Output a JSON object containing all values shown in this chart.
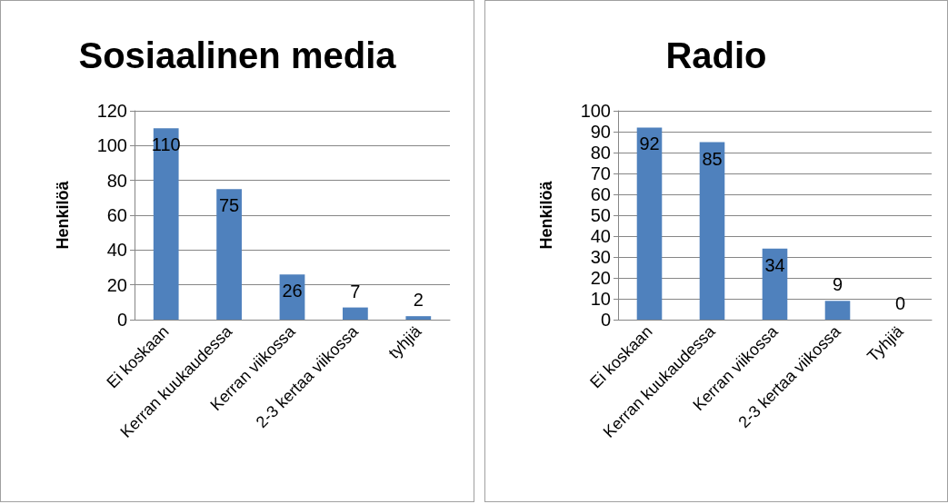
{
  "chart_data": [
    {
      "type": "bar",
      "title": "Sosiaalinen media",
      "ylabel": "Henkilöä",
      "categories": [
        "Ei koskaan",
        "Kerran kuukaudessa",
        "Kerran viikossa",
        "2-3 kertaa viikossa",
        "tyhjiä"
      ],
      "values": [
        110,
        75,
        26,
        7,
        2
      ],
      "color": "#4f81bd",
      "ylim": [
        0,
        120
      ],
      "yticks": [
        0,
        20,
        40,
        60,
        80,
        100,
        120
      ],
      "grid": "y",
      "data_labels": true
    },
    {
      "type": "bar",
      "title": "Radio",
      "ylabel": "Henkilöä",
      "categories": [
        "Ei koskaan",
        "Kerran kuukaudessa",
        "Kerran viikossa",
        "2-3 kertaa viikossa",
        "Tyhjiä"
      ],
      "values": [
        92,
        85,
        34,
        9,
        0
      ],
      "color": "#4f81bd",
      "ylim": [
        0,
        100
      ],
      "yticks": [
        0,
        10,
        20,
        30,
        40,
        50,
        60,
        70,
        80,
        90,
        100
      ],
      "grid": "y",
      "data_labels": true
    }
  ]
}
